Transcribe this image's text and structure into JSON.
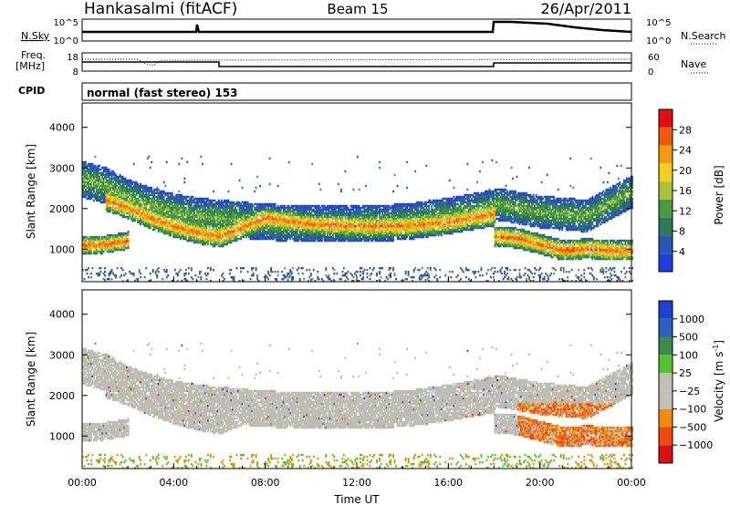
{
  "header": {
    "station": "Hankasalmi (fitACF)",
    "beam": "Beam 15",
    "date": "26/Apr/2011"
  },
  "top_panels": {
    "nsky": {
      "label": "N.Sky",
      "ticks": [
        "10^5",
        "10^0"
      ]
    },
    "nsearch": {
      "label": "N.Search",
      "ticks": [
        "10^5",
        "10^0"
      ]
    },
    "freq": {
      "label_1": "Freq.",
      "label_2": "[MHz]",
      "ticks": [
        "18",
        "8"
      ]
    },
    "nave": {
      "label": "Nave",
      "ticks": [
        "60",
        "0"
      ]
    },
    "cpid": {
      "label": "CPID",
      "mode_text": "normal (fast stereo) 153"
    }
  },
  "colors": {
    "power": [
      "#1f3fe0",
      "#2c55b8",
      "#2f7a5a",
      "#4a9a3e",
      "#a8c23a",
      "#f0d020",
      "#f59a10",
      "#ee5a10",
      "#e01010"
    ],
    "velocity": [
      "#2040d0",
      "#3060c0",
      "#3c8a50",
      "#55c030",
      "#c0c0b8",
      "#c0c0b8",
      "#f08a10",
      "#ee4a10",
      "#e01010"
    ],
    "gray": "#bdbdb5"
  },
  "chart_data": [
    {
      "type": "heatmap",
      "panel": "power",
      "ylabel": "Slant Range [km]",
      "ylim": [
        200,
        4600
      ],
      "yticks": [
        "1000",
        "2000",
        "3000",
        "4000"
      ],
      "xlim": [
        0,
        24
      ],
      "colorbar": {
        "label": "Power [dB]",
        "ticks": [
          "4",
          "8",
          "12",
          "16",
          "20",
          "24",
          "28"
        ],
        "range": [
          0,
          32
        ]
      },
      "bands": [
        {
          "name": "upper",
          "x": [
            0,
            1,
            2,
            3,
            4,
            5,
            6,
            8,
            10,
            12,
            14,
            16,
            18
          ],
          "range_km": [
            2700,
            2550,
            2250,
            2050,
            1900,
            1800,
            1750,
            1650,
            1600,
            1600,
            1650,
            1800,
            2000
          ],
          "width_km": 450,
          "peak_db": 14
        },
        {
          "name": "main",
          "x": [
            1,
            2,
            3,
            4,
            5,
            6,
            8,
            10,
            12,
            14,
            16,
            18
          ],
          "range_km": [
            2200,
            2000,
            1750,
            1550,
            1400,
            1300,
            1750,
            1600,
            1550,
            1550,
            1650,
            1850
          ],
          "width_km": 280,
          "peak_db": 26
        },
        {
          "name": "near",
          "x": [
            0,
            0.5,
            1,
            1.5,
            2
          ],
          "range_km": [
            1080,
            1080,
            1100,
            1150,
            1200
          ],
          "width_km": 220,
          "peak_db": 27
        },
        {
          "name": "evening",
          "x": [
            18,
            19,
            20,
            21,
            22,
            23,
            24
          ],
          "range_km": [
            1300,
            1250,
            1100,
            950,
            1000,
            950,
            950
          ],
          "width_km": 250,
          "peak_db": 27
        },
        {
          "name": "evening-upper",
          "x": [
            18,
            20,
            22,
            24
          ],
          "range_km": [
            2100,
            1900,
            1800,
            2400
          ],
          "width_km": 400,
          "peak_db": 14
        }
      ]
    },
    {
      "type": "heatmap",
      "panel": "velocity",
      "ylabel": "Slant Range [km]",
      "ylim": [
        200,
        4600
      ],
      "yticks": [
        "1000",
        "2000",
        "3000",
        "4000"
      ],
      "xlim": [
        0,
        24
      ],
      "colorbar": {
        "label": "Velocity [m s^-1]",
        "ticks": [
          "1000",
          "500",
          "100",
          "25",
          "−25",
          "−100",
          "−500",
          "−1000"
        ]
      },
      "xticks": [
        "00:00",
        "04:00",
        "08:00",
        "12:00",
        "16:00",
        "20:00",
        "00:00"
      ],
      "xlabel": "Time UT"
    }
  ]
}
